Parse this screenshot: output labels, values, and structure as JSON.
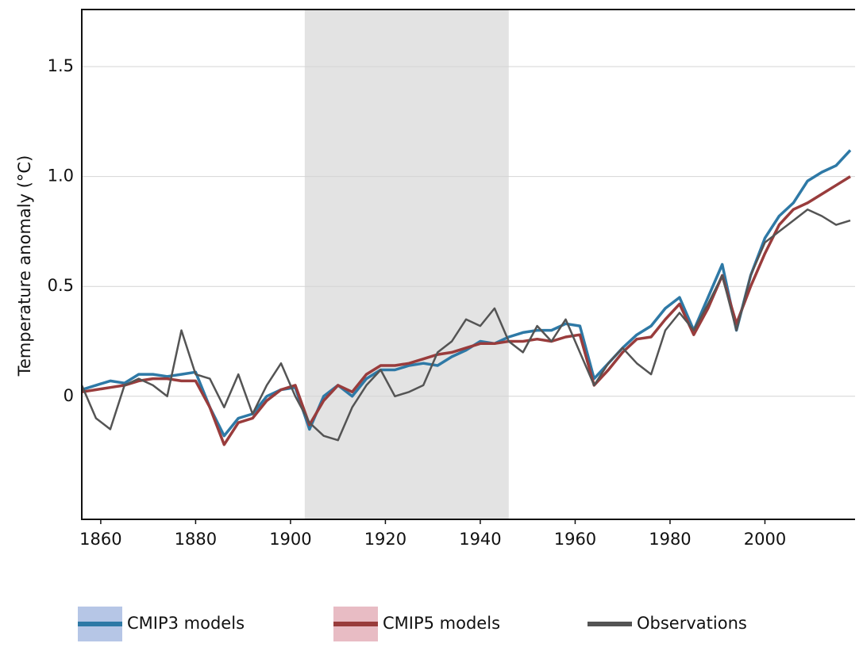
{
  "chart_data": {
    "type": "line",
    "y_label": "Temperature anomaly (°C)",
    "x": [
      1856,
      1859,
      1862,
      1865,
      1868,
      1871,
      1874,
      1877,
      1880,
      1883,
      1886,
      1889,
      1892,
      1895,
      1898,
      1901,
      1904,
      1907,
      1910,
      1913,
      1916,
      1919,
      1922,
      1925,
      1928,
      1931,
      1934,
      1937,
      1940,
      1943,
      1946,
      1949,
      1952,
      1955,
      1958,
      1961,
      1964,
      1967,
      1970,
      1973,
      1976,
      1979,
      1982,
      1985,
      1988,
      1991,
      1994,
      1997,
      2000,
      2003,
      2006,
      2009,
      2012,
      2015,
      2018
    ],
    "series": [
      {
        "name": "CMIP3 models",
        "color": "#2e79a6",
        "ensemble_color": "#b6c6e6",
        "values": [
          0.03,
          0.05,
          0.07,
          0.06,
          0.1,
          0.1,
          0.09,
          0.1,
          0.11,
          -0.05,
          -0.18,
          -0.1,
          -0.08,
          0.0,
          0.03,
          0.04,
          -0.15,
          0.0,
          0.05,
          0.0,
          0.08,
          0.12,
          0.12,
          0.14,
          0.15,
          0.14,
          0.18,
          0.21,
          0.25,
          0.24,
          0.27,
          0.29,
          0.3,
          0.3,
          0.33,
          0.32,
          0.08,
          0.15,
          0.22,
          0.28,
          0.32,
          0.4,
          0.45,
          0.3,
          0.45,
          0.6,
          0.3,
          0.55,
          0.72,
          0.82,
          0.88,
          0.98,
          1.02,
          1.05,
          1.12
        ]
      },
      {
        "name": "CMIP5 models",
        "color": "#993c3c",
        "ensemble_color": "#e8bcc4",
        "values": [
          0.02,
          0.03,
          0.04,
          0.05,
          0.07,
          0.08,
          0.08,
          0.07,
          0.07,
          -0.05,
          -0.22,
          -0.12,
          -0.1,
          -0.02,
          0.03,
          0.05,
          -0.13,
          -0.02,
          0.05,
          0.02,
          0.1,
          0.14,
          0.14,
          0.15,
          0.17,
          0.19,
          0.2,
          0.22,
          0.24,
          0.24,
          0.25,
          0.25,
          0.26,
          0.25,
          0.27,
          0.28,
          0.05,
          0.12,
          0.2,
          0.26,
          0.27,
          0.35,
          0.42,
          0.28,
          0.4,
          0.55,
          0.33,
          0.5,
          0.65,
          0.78,
          0.85,
          0.88,
          0.92,
          0.96,
          1.0
        ]
      },
      {
        "name": "Observations",
        "color": "#545454",
        "values": [
          0.05,
          -0.1,
          -0.15,
          0.05,
          0.08,
          0.05,
          0.0,
          0.3,
          0.1,
          0.08,
          -0.05,
          0.1,
          -0.08,
          0.05,
          0.15,
          0.0,
          -0.12,
          -0.18,
          -0.2,
          -0.05,
          0.05,
          0.12,
          0.0,
          0.02,
          0.05,
          0.2,
          0.25,
          0.35,
          0.32,
          0.4,
          0.25,
          0.2,
          0.32,
          0.25,
          0.35,
          0.2,
          0.05,
          0.15,
          0.22,
          0.15,
          0.1,
          0.3,
          0.38,
          0.3,
          0.42,
          0.55,
          0.3,
          0.55,
          0.7,
          0.75,
          0.8,
          0.85,
          0.82,
          0.78,
          0.8
        ]
      }
    ],
    "shaded_span": [
      1903,
      1946
    ],
    "shade_color": "#e3e3e3",
    "xlim": [
      1856,
      2019
    ],
    "xticks": [
      1860,
      1880,
      1900,
      1920,
      1940,
      1960,
      1980,
      2000
    ],
    "ylim": [
      -0.56,
      1.76
    ],
    "yticks": [
      0,
      0.5,
      {
        "value": 1,
        "label": "1.0"
      },
      1.5
    ],
    "grid": true
  }
}
